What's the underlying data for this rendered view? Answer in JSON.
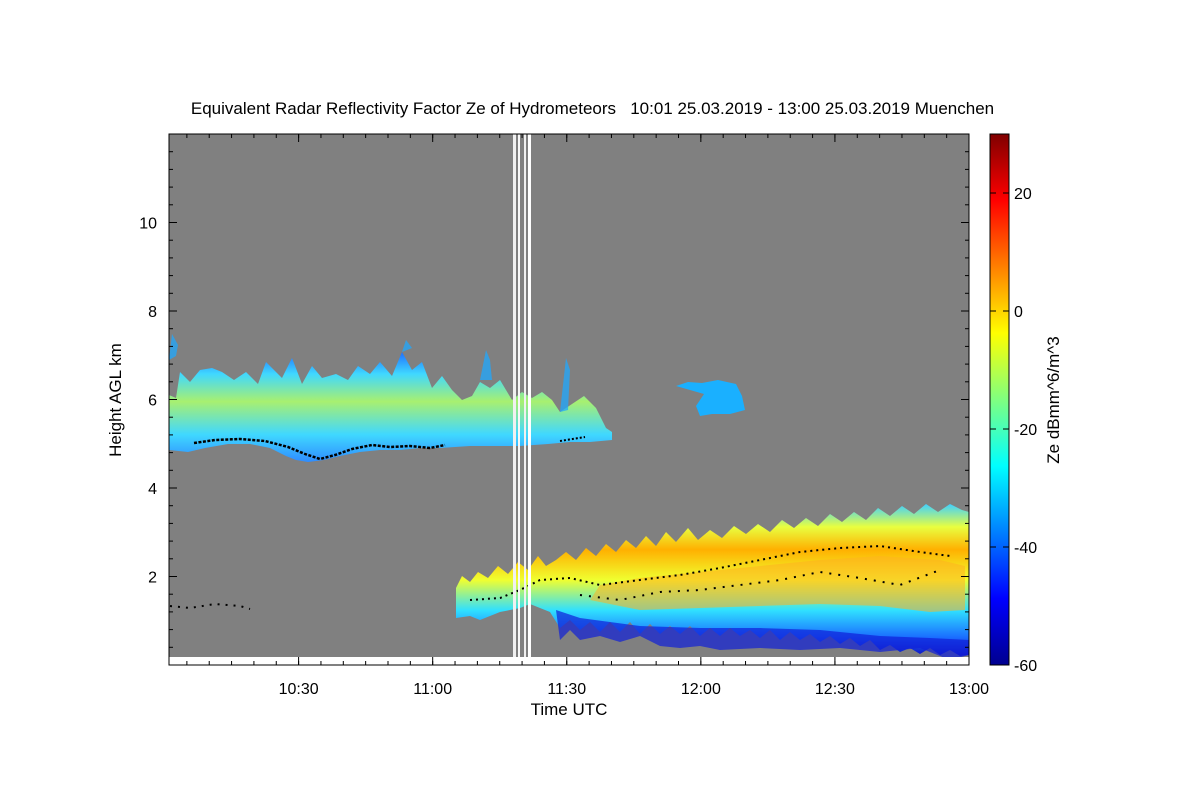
{
  "title": "Equivalent Radar Reflectivity Factor Ze of Hydrometeors   10:01 25.03.2019 - 13:00 25.03.2019 Muenchen",
  "chart_data": {
    "type": "heatmap",
    "title": "Equivalent Radar Reflectivity Factor Ze of Hydrometeors   10:01 25.03.2019 - 13:00 25.03.2019 Muenchen",
    "xlabel": "Time UTC",
    "ylabel": "Height AGL km",
    "xlim": [
      "10:01",
      "13:00"
    ],
    "ylim": [
      0,
      12
    ],
    "x_ticks": [
      "10:30",
      "11:00",
      "11:30",
      "12:00",
      "12:30",
      "13:00"
    ],
    "y_ticks": [
      2,
      4,
      6,
      8,
      10
    ],
    "colorbar": {
      "label": "Ze dBmm^6/m^3",
      "range": [
        -60,
        30
      ],
      "ticks": [
        -60,
        -40,
        -20,
        0,
        20
      ],
      "colormap": "jet"
    },
    "background_color": "#808080",
    "features": [
      {
        "name": "upper cloud layer",
        "time": [
          "10:01",
          "11:41"
        ],
        "height_km": [
          4.5,
          7.1
        ],
        "ze_range": [
          -40,
          -12
        ]
      },
      {
        "name": "small cloud patch",
        "time": [
          "12:00",
          "12:11"
        ],
        "height_km": [
          5.8,
          6.4
        ],
        "ze_range": [
          -35,
          -25
        ]
      },
      {
        "name": "lower precipitation layer",
        "time": [
          "11:07",
          "13:00"
        ],
        "height_km": [
          0.3,
          3.5
        ],
        "ze_range": [
          -55,
          10
        ]
      }
    ]
  }
}
